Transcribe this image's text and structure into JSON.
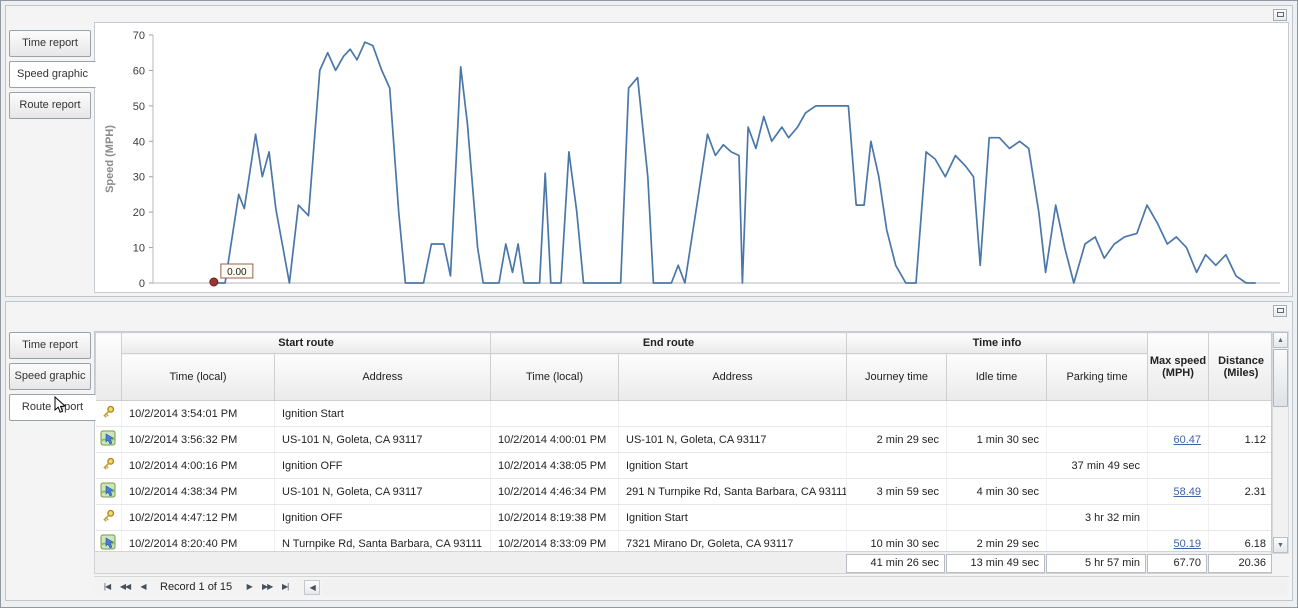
{
  "colors": {
    "chart_line": "#4a77a8",
    "link": "#3f62a5",
    "marker_fill": "#9a3634"
  },
  "icons_text": {
    "up_arrow": "▲",
    "down_arrow": "▼",
    "left_arrow": "◀"
  },
  "top_panel": {
    "tabs": [
      "Time report",
      "Speed graphic",
      "Route report"
    ],
    "selected_tab": "Speed graphic"
  },
  "chart_data": {
    "type": "line",
    "title": "",
    "xlabel": "",
    "ylabel": "Speed (MPH)",
    "ylim": [
      0,
      70
    ],
    "yticks": [
      0,
      10,
      20,
      30,
      40,
      50,
      60,
      70
    ],
    "grid": false,
    "legend": "none",
    "series": [
      {
        "name": "Speed (MPH)",
        "color": "#4a77a8",
        "points": [
          [
            5.2,
            0
          ],
          [
            6.4,
            0
          ],
          [
            7.6,
            25
          ],
          [
            8.1,
            21
          ],
          [
            9.1,
            42
          ],
          [
            9.7,
            30
          ],
          [
            10.3,
            37
          ],
          [
            10.9,
            21
          ],
          [
            12.1,
            0
          ],
          [
            12.9,
            22
          ],
          [
            13.8,
            19
          ],
          [
            14.8,
            60
          ],
          [
            15.5,
            65
          ],
          [
            16.2,
            60
          ],
          [
            16.9,
            64
          ],
          [
            17.5,
            66
          ],
          [
            18.1,
            63
          ],
          [
            18.8,
            68
          ],
          [
            19.5,
            67
          ],
          [
            20.3,
            60
          ],
          [
            21.0,
            55
          ],
          [
            21.8,
            20
          ],
          [
            22.4,
            0
          ],
          [
            24.0,
            0
          ],
          [
            24.7,
            11
          ],
          [
            25.8,
            11
          ],
          [
            26.4,
            2
          ],
          [
            27.3,
            61
          ],
          [
            27.9,
            45
          ],
          [
            28.8,
            10
          ],
          [
            29.3,
            0
          ],
          [
            30.7,
            0
          ],
          [
            31.3,
            11
          ],
          [
            31.9,
            3
          ],
          [
            32.4,
            11
          ],
          [
            32.9,
            0
          ],
          [
            34.3,
            0
          ],
          [
            34.8,
            31
          ],
          [
            35.3,
            0
          ],
          [
            36.2,
            0
          ],
          [
            36.9,
            37
          ],
          [
            37.6,
            20
          ],
          [
            38.2,
            0
          ],
          [
            41.5,
            0
          ],
          [
            42.2,
            55
          ],
          [
            43.0,
            58
          ],
          [
            43.9,
            30
          ],
          [
            44.4,
            0
          ],
          [
            46.0,
            0
          ],
          [
            46.6,
            5
          ],
          [
            47.2,
            0
          ],
          [
            48.4,
            25
          ],
          [
            49.2,
            42
          ],
          [
            49.9,
            36
          ],
          [
            50.6,
            39
          ],
          [
            51.3,
            37
          ],
          [
            52.0,
            36
          ],
          [
            52.3,
            0
          ],
          [
            52.8,
            44
          ],
          [
            53.5,
            38
          ],
          [
            54.2,
            47
          ],
          [
            54.9,
            40
          ],
          [
            55.8,
            44
          ],
          [
            56.4,
            41
          ],
          [
            57.2,
            44
          ],
          [
            57.9,
            48
          ],
          [
            58.8,
            50
          ],
          [
            59.8,
            50
          ],
          [
            61.0,
            50
          ],
          [
            61.7,
            50
          ],
          [
            62.4,
            22
          ],
          [
            63.1,
            22
          ],
          [
            63.7,
            40
          ],
          [
            64.4,
            30
          ],
          [
            65.1,
            15
          ],
          [
            65.9,
            5
          ],
          [
            66.8,
            0
          ],
          [
            67.7,
            0
          ],
          [
            68.6,
            37
          ],
          [
            69.4,
            35
          ],
          [
            70.3,
            30
          ],
          [
            71.2,
            36
          ],
          [
            72.1,
            33
          ],
          [
            72.8,
            30
          ],
          [
            73.4,
            5
          ],
          [
            74.2,
            41
          ],
          [
            75.1,
            41
          ],
          [
            76.0,
            38
          ],
          [
            76.9,
            40
          ],
          [
            77.7,
            38
          ],
          [
            78.6,
            20
          ],
          [
            79.2,
            3
          ],
          [
            80.1,
            22
          ],
          [
            80.9,
            10
          ],
          [
            81.7,
            0
          ],
          [
            82.7,
            11
          ],
          [
            83.6,
            13
          ],
          [
            84.4,
            7
          ],
          [
            85.3,
            11
          ],
          [
            86.2,
            13
          ],
          [
            87.3,
            14
          ],
          [
            88.2,
            22
          ],
          [
            89.1,
            17
          ],
          [
            90.0,
            11
          ],
          [
            90.8,
            13
          ],
          [
            91.7,
            10
          ],
          [
            92.6,
            3
          ],
          [
            93.4,
            8
          ],
          [
            94.3,
            5
          ],
          [
            95.2,
            8
          ],
          [
            96.1,
            2
          ],
          [
            97.0,
            0
          ],
          [
            97.8,
            0
          ]
        ]
      }
    ],
    "marker": {
      "x": 5.4,
      "y": 0,
      "label": "0.00"
    }
  },
  "bottom_panel": {
    "tabs": [
      "Time report",
      "Speed graphic",
      "Route report"
    ],
    "selected_tab": "Route report",
    "table": {
      "groups": [
        "Start route",
        "End route",
        "Time info"
      ],
      "columns": [
        "Time (local)",
        "Address",
        "Time (local)",
        "Address",
        "Journey time",
        "Idle time",
        "Parking time",
        "Max speed (MPH)",
        "Distance (Miles)"
      ],
      "rows": [
        {
          "icon": "key-icon",
          "cells": [
            "10/2/2014 3:54:01 PM",
            "Ignition Start",
            "",
            "",
            "",
            "",
            "",
            "",
            ""
          ]
        },
        {
          "icon": "route-icon",
          "cells": [
            "10/2/2014 3:56:32 PM",
            "US-101 N, Goleta, CA 93117",
            "10/2/2014 4:00:01 PM",
            "US-101 N, Goleta, CA 93117",
            "2 min 29 sec",
            "1 min 30 sec",
            "",
            "60.47",
            "1.12"
          ]
        },
        {
          "icon": "key-icon",
          "cells": [
            "10/2/2014 4:00:16 PM",
            "Ignition OFF",
            "10/2/2014 4:38:05 PM",
            "Ignition Start",
            "",
            "",
            "37 min 49 sec",
            "",
            ""
          ]
        },
        {
          "icon": "route-icon",
          "cells": [
            "10/2/2014 4:38:34 PM",
            "US-101 N, Goleta, CA 93117",
            "10/2/2014 4:46:34 PM",
            "291 N Turnpike Rd, Santa Barbara, CA 93111",
            "3 min 59 sec",
            "4 min 30 sec",
            "",
            "58.49",
            "2.31"
          ]
        },
        {
          "icon": "key-icon",
          "cells": [
            "10/2/2014 4:47:12 PM",
            "Ignition OFF",
            "10/2/2014 8:19:38 PM",
            "Ignition Start",
            "",
            "",
            "3 hr 32 min",
            "",
            ""
          ]
        },
        {
          "icon": "route-icon",
          "cells": [
            "10/2/2014 8:20:40 PM",
            "N Turnpike Rd, Santa Barbara, CA 93111",
            "10/2/2014 8:33:09 PM",
            "7321 Mirano Dr, Goleta, CA 93117",
            "10 min 30 sec",
            "2 min 29 sec",
            "",
            "50.19",
            "6.18"
          ]
        }
      ],
      "summary": {
        "journey_time": "41 min 26 sec",
        "idle_time": "13 min 49 sec",
        "parking_time": "5 hr 57 min",
        "max_speed": "67.70",
        "distance": "20.36"
      }
    },
    "pagination": {
      "record_label": "Record 1 of 15",
      "nav_left": [
        "|◀",
        "◀◀",
        "◀"
      ],
      "nav_right": [
        "▶",
        "▶▶",
        "▶|"
      ]
    }
  }
}
